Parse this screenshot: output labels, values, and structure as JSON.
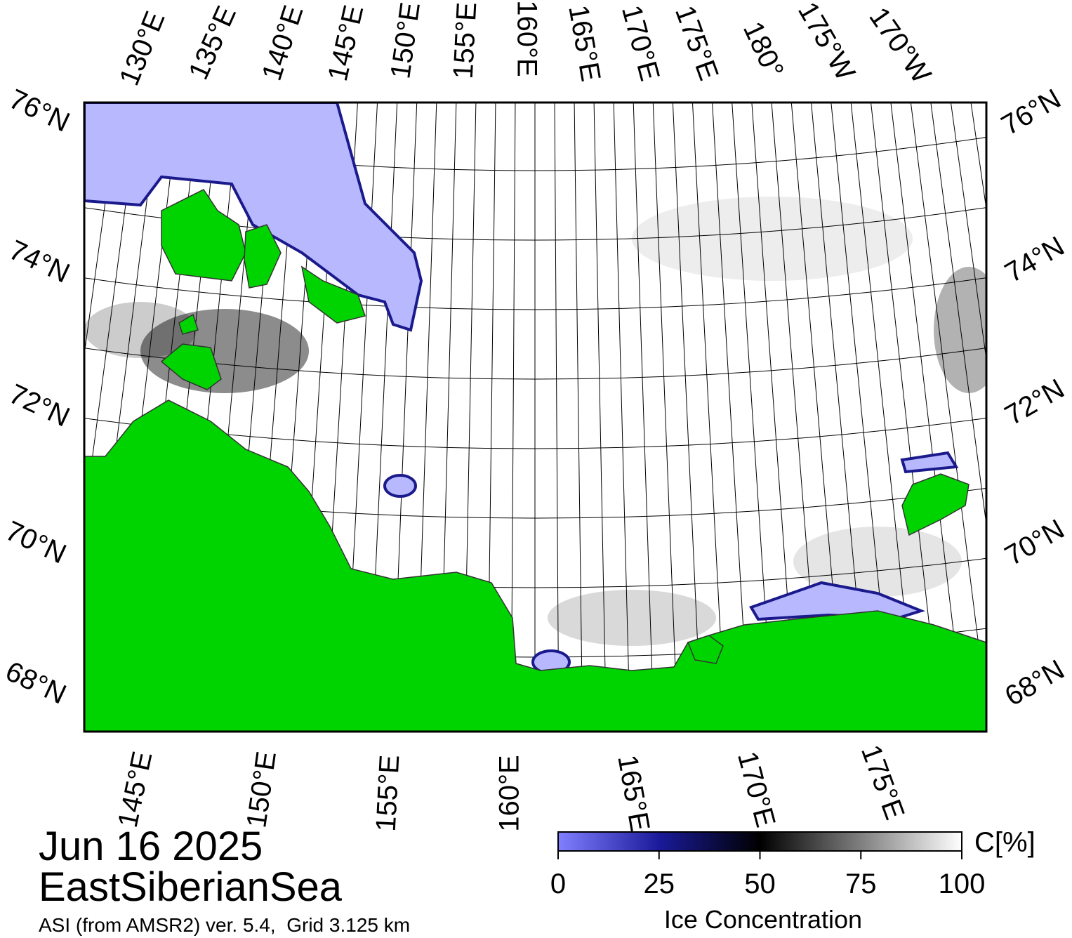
{
  "map": {
    "top_lon_labels": [
      "130°E",
      "135°E",
      "140°E",
      "145°E",
      "150°E",
      "155°E",
      "160°E",
      "165°E",
      "170°E",
      "175°E",
      "180°",
      "175°W",
      "170°W"
    ],
    "left_lat_labels": [
      "76°N",
      "74°N",
      "72°N",
      "70°N",
      "68°N"
    ],
    "right_lat_labels": [
      "76°N",
      "74°N",
      "72°N",
      "70°N",
      "68°N"
    ],
    "bottom_lon_labels": [
      "145°E",
      "150°E",
      "155°E",
      "160°E",
      "165°E",
      "170°E",
      "175°E"
    ]
  },
  "caption": {
    "date": "Jun 16 2025",
    "region": "EastSiberianSea",
    "source": "ASI (from AMSR2) ver. 5.4,  Grid 3.125 km"
  },
  "colorbar": {
    "range": [
      0,
      100
    ],
    "ticks": [
      0,
      25,
      50,
      75,
      100
    ],
    "unit": "C[%]",
    "label": "Ice Concentration"
  }
}
